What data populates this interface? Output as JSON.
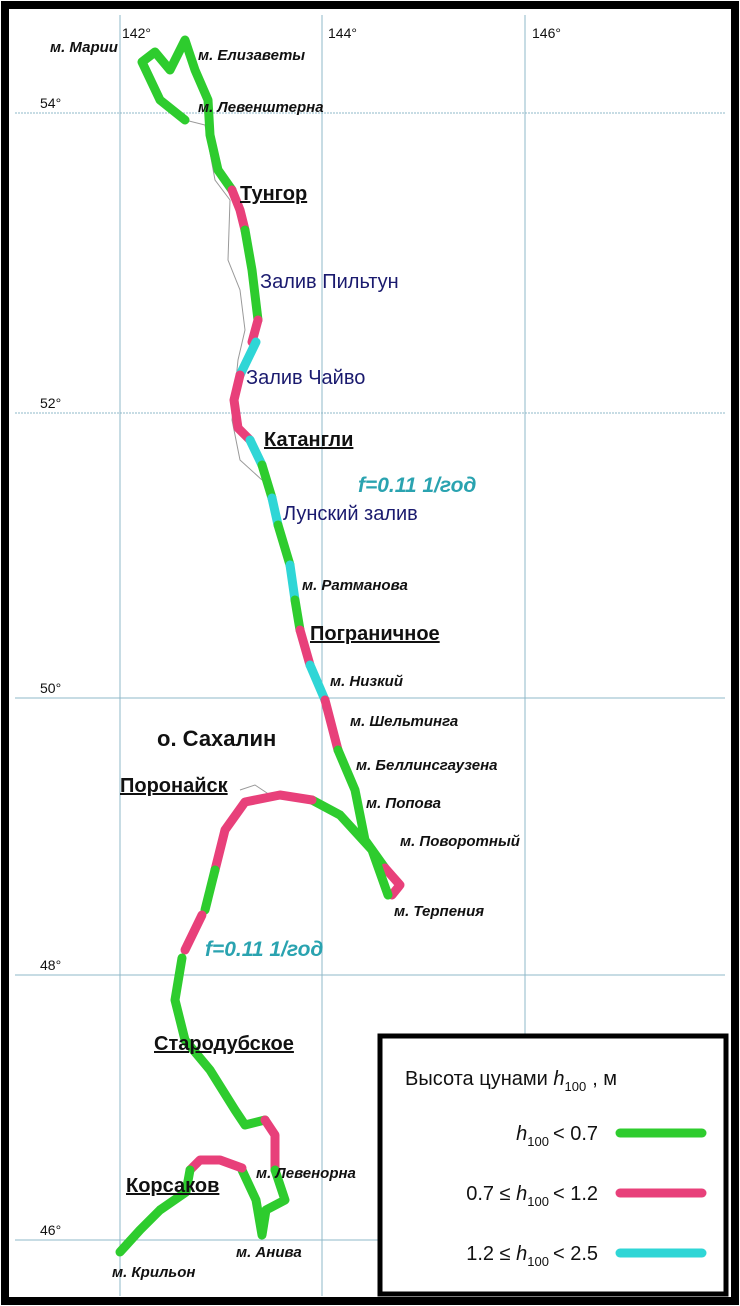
{
  "map": {
    "longitudes": [
      "142°",
      "144°",
      "146°"
    ],
    "latitudes": [
      "54°",
      "52°",
      "50°",
      "48°",
      "46°"
    ],
    "island": "о. Сахалин",
    "capes": [
      "м. Марии",
      "м. Елизаветы",
      "м. Левенштерна",
      "м. Ратманова",
      "м. Низкий",
      "м. Шельтинга",
      "м. Беллинсгаузена",
      "м. Попова",
      "м. Поворотный",
      "м. Терпения",
      "м. Левенорна",
      "м. Анива",
      "м. Крильон"
    ],
    "towns": [
      "Тунгор",
      "Катангли",
      "Пограничное",
      "Поронайск",
      "Стародубское",
      "Корсаков"
    ],
    "bays": [
      "Залив Пильтун",
      "Залив Чайво",
      "Лунский залив"
    ],
    "frequency_notes": [
      "f=0.11 1/год",
      "f=0.11 1/год"
    ]
  },
  "legend": {
    "title": {
      "prefix": "Высота цунами",
      "symbol": "h",
      "subscript": "100",
      "suffix": ", м"
    },
    "items": [
      {
        "symbol": "h",
        "subscript": "100",
        "suffix": "< 0.7",
        "color": "#2ecc2e"
      },
      {
        "prefix": "0.7 ≤",
        "symbol": "h",
        "subscript": "100",
        "suffix": "< 1.2",
        "color": "#e8407a"
      },
      {
        "prefix": "1.2 ≤",
        "symbol": "h",
        "subscript": "100",
        "suffix": "< 2.5",
        "color": "#2fd6d6"
      }
    ]
  }
}
